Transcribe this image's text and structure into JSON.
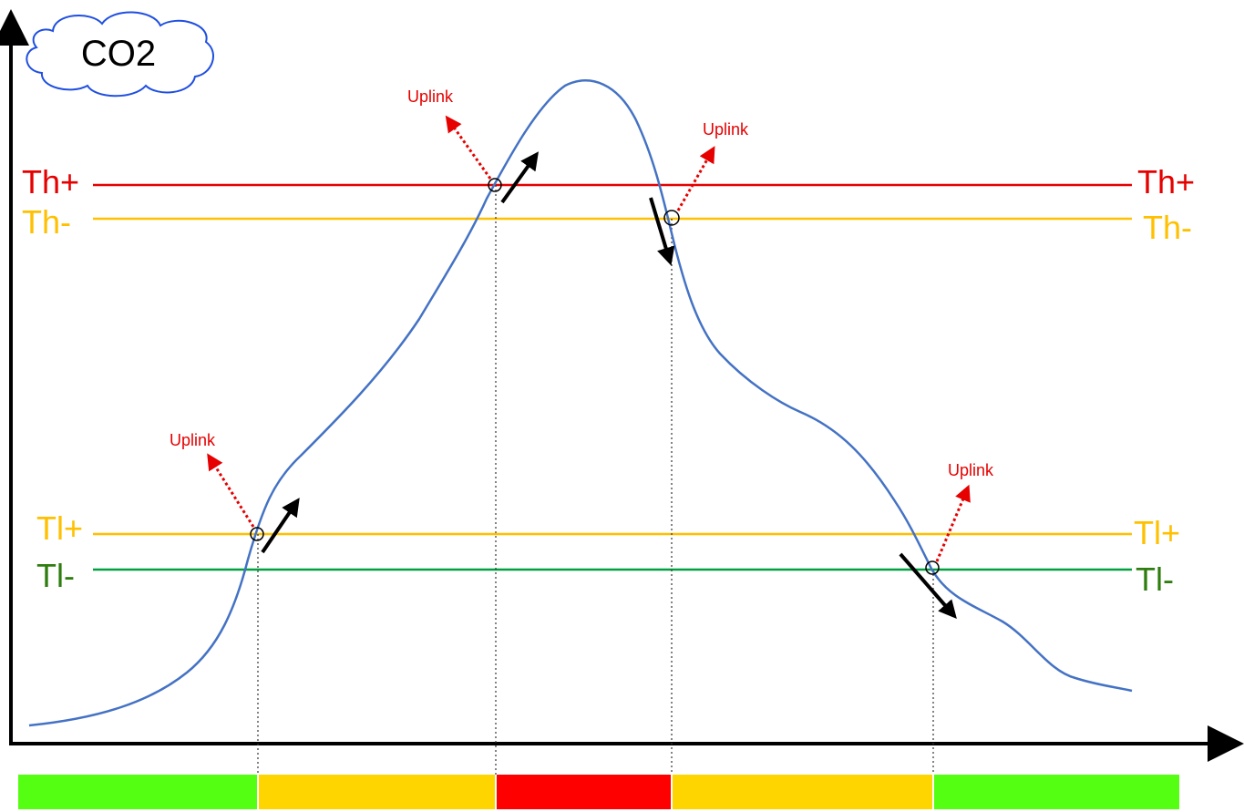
{
  "title": "CO2",
  "colors": {
    "curve": "#4472C4",
    "th_plus": "#E60000",
    "th_minus": "#FFC000",
    "tl_plus": "#FFC000",
    "tl_minus": "#00A040",
    "tl_minus_text": "#2E7D0E",
    "uplink": "#E60000",
    "cloud_border": "#1F4FE0",
    "axis": "#000000",
    "band_green": "#55FF11",
    "band_yellow": "#FFD500",
    "band_red": "#FF0000"
  },
  "thresholds": [
    {
      "id": "th_plus",
      "label": "Th+"
    },
    {
      "id": "th_minus",
      "label": "Th-"
    },
    {
      "id": "tl_plus",
      "label": "Tl+"
    },
    {
      "id": "tl_minus",
      "label": "Tl-"
    }
  ],
  "crossings": [
    {
      "threshold": "Tl+",
      "direction": "up",
      "label": "Uplink"
    },
    {
      "threshold": "Th+",
      "direction": "up",
      "label": "Uplink"
    },
    {
      "threshold": "Th-",
      "direction": "down",
      "label": "Uplink"
    },
    {
      "threshold": "Tl-",
      "direction": "down",
      "label": "Uplink"
    }
  ],
  "state_bar": [
    {
      "state": "low",
      "color": "#55FF11"
    },
    {
      "state": "medium",
      "color": "#FFD500"
    },
    {
      "state": "high",
      "color": "#FF0000"
    },
    {
      "state": "medium",
      "color": "#FFD500"
    },
    {
      "state": "low",
      "color": "#55FF11"
    }
  ]
}
